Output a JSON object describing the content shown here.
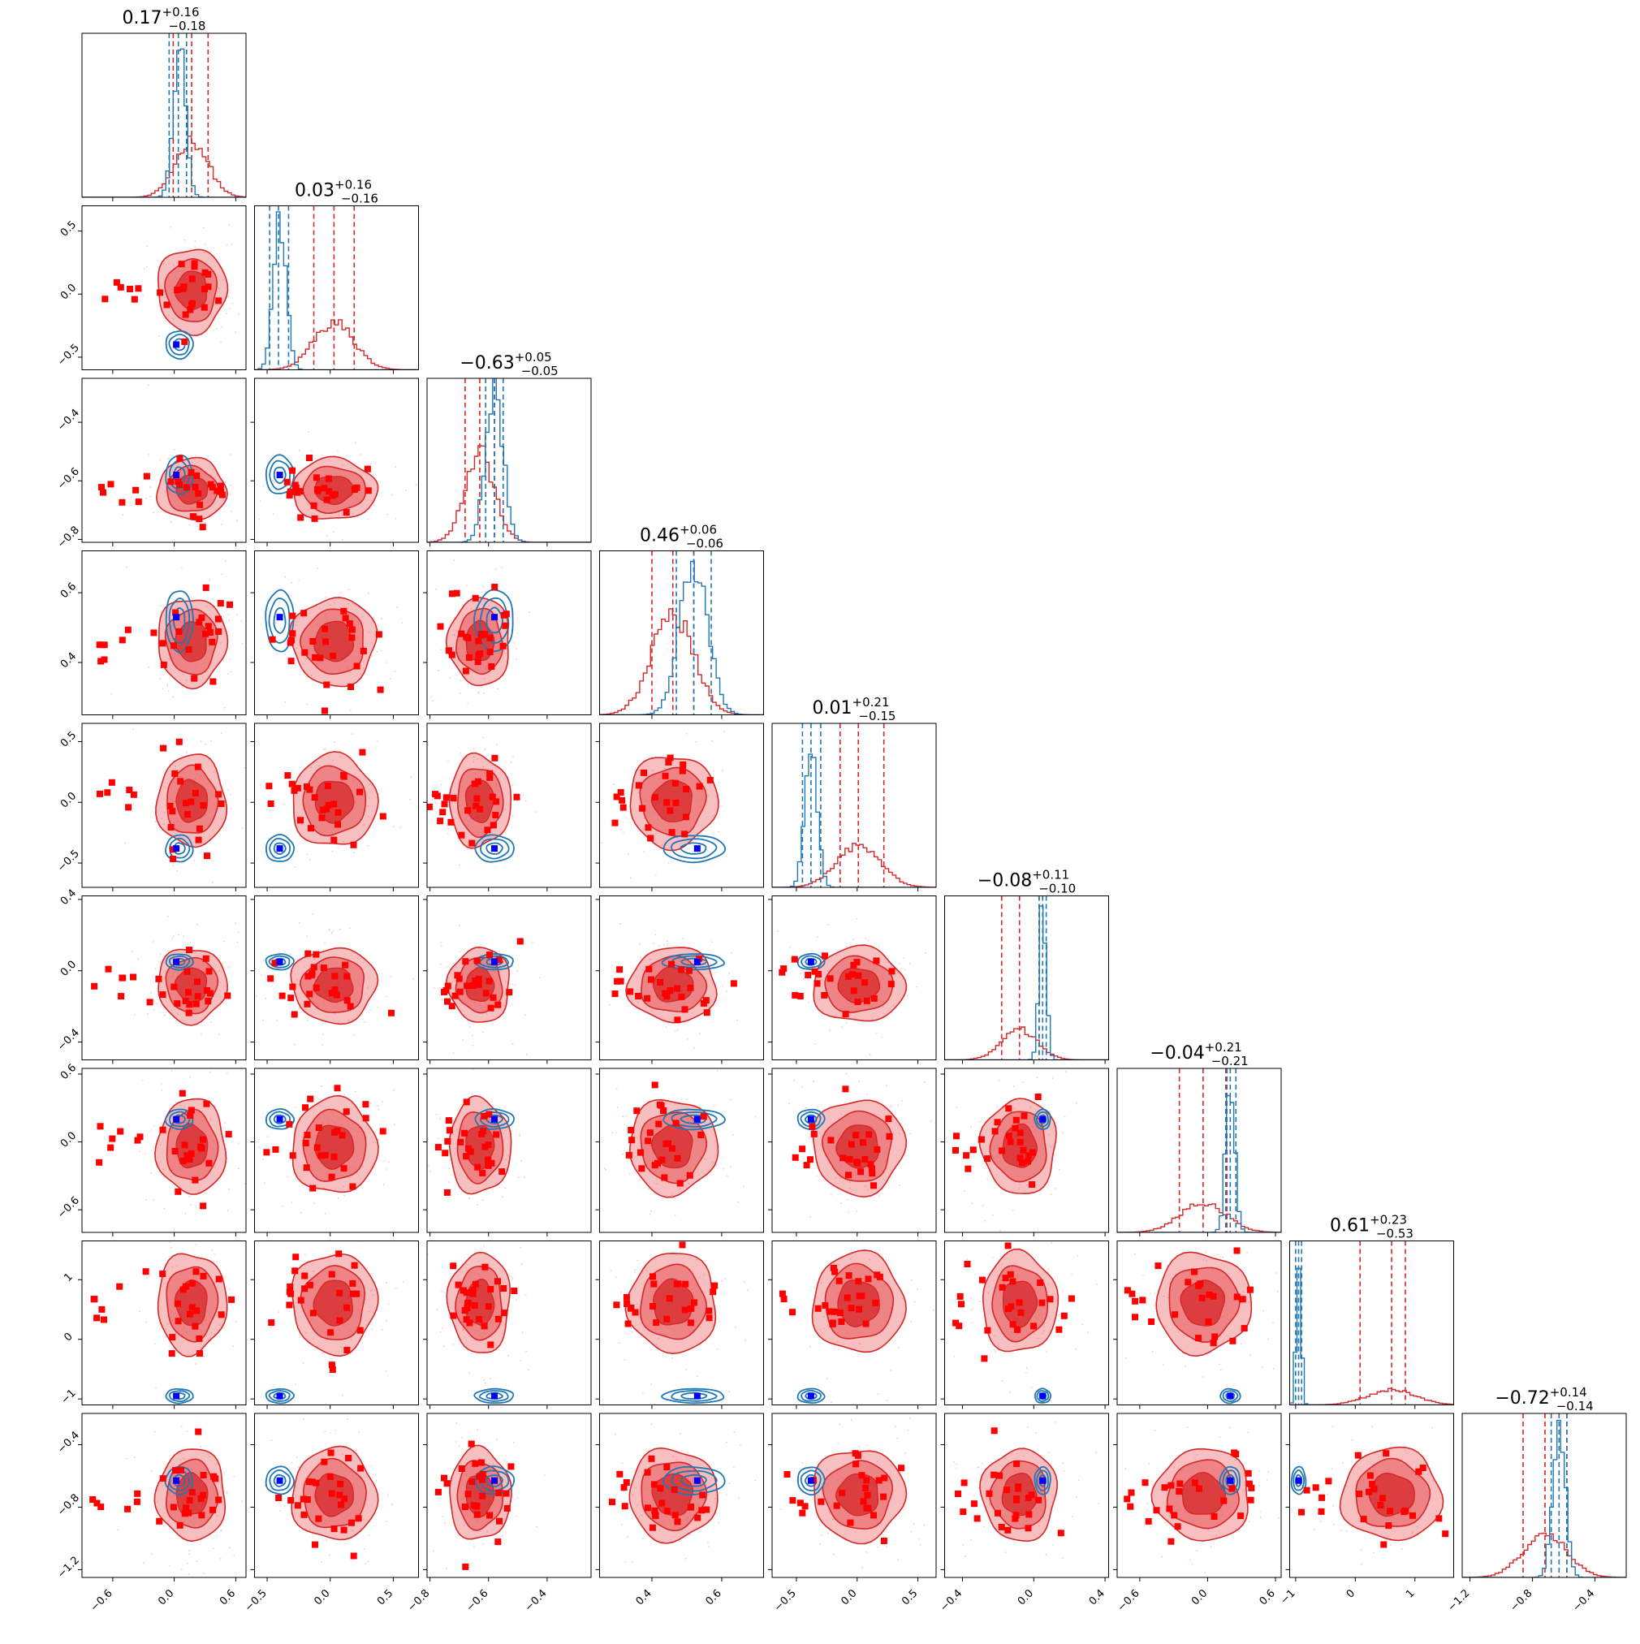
{
  "chart_data": {
    "type": "corner",
    "series": [
      {
        "name": "",
        "color": "#d62728",
        "kind": "filled-contours + red square markers"
      },
      {
        "name": "",
        "color": "#1f77b4",
        "kind": "contour lines + blue square marker"
      }
    ],
    "grid": false,
    "legend": "none",
    "colors": {
      "red": "#d62728",
      "red_fill": "#e8494b",
      "blue": "#1f77b4",
      "marker_blue": "#0000ff",
      "marker_red": "#ff0000"
    },
    "params": [
      {
        "title": {
          "main": "0.17",
          "sup": "+0.16",
          "sub": "−0.18"
        },
        "range": [
          -0.9,
          0.7
        ],
        "ticks": [
          "−0.6",
          "0.0",
          "0.6"
        ],
        "tickvals": [
          -0.6,
          0.0,
          0.6
        ],
        "red": {
          "mu": 0.17,
          "sd": 0.16,
          "q": [
            -0.01,
            0.17,
            0.33
          ]
        },
        "blue": {
          "mu": 0.05,
          "sd": 0.06,
          "q": [
            -0.05,
            0.04,
            0.12
          ]
        },
        "truth": 0.02
      },
      {
        "title": {
          "main": "0.03",
          "sup": "+0.16",
          "sub": "−0.16"
        },
        "range": [
          -0.6,
          0.7
        ],
        "ticks": [
          "−0.5",
          "0.0",
          "0.5"
        ],
        "tickvals": [
          -0.5,
          0.0,
          0.5
        ],
        "red": {
          "mu": 0.03,
          "sd": 0.16,
          "q": [
            -0.13,
            0.03,
            0.19
          ]
        },
        "blue": {
          "mu": -0.4,
          "sd": 0.05,
          "q": [
            -0.48,
            -0.41,
            -0.33
          ]
        },
        "truth": -0.4
      },
      {
        "title": {
          "main": "−0.63",
          "sup": "+0.05",
          "sub": "−0.05"
        },
        "range": [
          -0.81,
          -0.25
        ],
        "ticks": [
          "−0.8",
          "−0.6",
          "−0.4"
        ],
        "tickvals": [
          -0.8,
          -0.6,
          -0.4
        ],
        "red": {
          "mu": -0.63,
          "sd": 0.05,
          "q": [
            -0.68,
            -0.63,
            -0.58
          ]
        },
        "blue": {
          "mu": -0.58,
          "sd": 0.03,
          "q": [
            -0.61,
            -0.58,
            -0.55
          ]
        },
        "truth": -0.58
      },
      {
        "title": {
          "main": "0.46",
          "sup": "+0.06",
          "sub": "−0.06"
        },
        "range": [
          0.25,
          0.72
        ],
        "ticks": [
          "0.4",
          "0.6"
        ],
        "tickvals": [
          0.4,
          0.6
        ],
        "red": {
          "mu": 0.46,
          "sd": 0.06,
          "q": [
            0.4,
            0.46,
            0.52
          ]
        },
        "blue": {
          "mu": 0.52,
          "sd": 0.04,
          "q": [
            0.47,
            0.52,
            0.57
          ]
        },
        "truth": 0.53
      },
      {
        "title": {
          "main": "0.01",
          "sup": "+0.21",
          "sub": "−0.15"
        },
        "range": [
          -0.7,
          0.65
        ],
        "ticks": [
          "−0.5",
          "0.0",
          "0.5"
        ],
        "tickvals": [
          -0.5,
          0.0,
          0.5
        ],
        "red": {
          "mu": 0.01,
          "sd": 0.18,
          "q": [
            -0.14,
            0.01,
            0.22
          ]
        },
        "blue": {
          "mu": -0.38,
          "sd": 0.05,
          "q": [
            -0.45,
            -0.38,
            -0.3
          ]
        },
        "truth": -0.38
      },
      {
        "title": {
          "main": "−0.08",
          "sup": "+0.11",
          "sub": "−0.10"
        },
        "range": [
          -0.5,
          0.42
        ],
        "ticks": [
          "−0.4",
          "0.0",
          "0.4"
        ],
        "tickvals": [
          -0.4,
          0.0,
          0.4
        ],
        "red": {
          "mu": -0.08,
          "sd": 0.1,
          "q": [
            -0.18,
            -0.08,
            0.03
          ]
        },
        "blue": {
          "mu": 0.05,
          "sd": 0.02,
          "q": [
            0.03,
            0.05,
            0.07
          ]
        },
        "truth": 0.05
      },
      {
        "title": {
          "main": "−0.04",
          "sup": "+0.21",
          "sub": "−0.21"
        },
        "range": [
          -0.8,
          0.65
        ],
        "ticks": [
          "−0.6",
          "0.0",
          "0.6"
        ],
        "tickvals": [
          -0.6,
          0.0,
          0.6
        ],
        "red": {
          "mu": -0.04,
          "sd": 0.2,
          "q": [
            -0.25,
            -0.04,
            0.17
          ]
        },
        "blue": {
          "mu": 0.2,
          "sd": 0.04,
          "q": [
            0.16,
            0.2,
            0.25
          ]
        },
        "truth": 0.2
      },
      {
        "title": {
          "main": "0.61",
          "sup": "+0.23",
          "sub": "−0.53"
        },
        "range": [
          -1.1,
          1.65
        ],
        "ticks": [
          "−1",
          "0",
          "1"
        ],
        "tickvals": [
          -1,
          0,
          1
        ],
        "red": {
          "mu": 0.61,
          "sd": 0.4,
          "q": [
            0.08,
            0.61,
            0.84
          ]
        },
        "blue": {
          "mu": -0.95,
          "sd": 0.04,
          "q": [
            -1.0,
            -0.95,
            -0.9
          ]
        },
        "truth": -0.95
      },
      {
        "title": {
          "main": "−0.72",
          "sup": "+0.14",
          "sub": "−0.14"
        },
        "range": [
          -1.25,
          -0.2
        ],
        "ticks": [
          "−1.2",
          "−0.8",
          "−0.4"
        ],
        "tickvals": [
          -1.2,
          -0.8,
          -0.4
        ],
        "red": {
          "mu": -0.72,
          "sd": 0.14,
          "q": [
            -0.86,
            -0.72,
            -0.58
          ]
        },
        "blue": {
          "mu": -0.63,
          "sd": 0.04,
          "q": [
            -0.68,
            -0.63,
            -0.58
          ]
        },
        "truth": -0.63
      }
    ]
  }
}
